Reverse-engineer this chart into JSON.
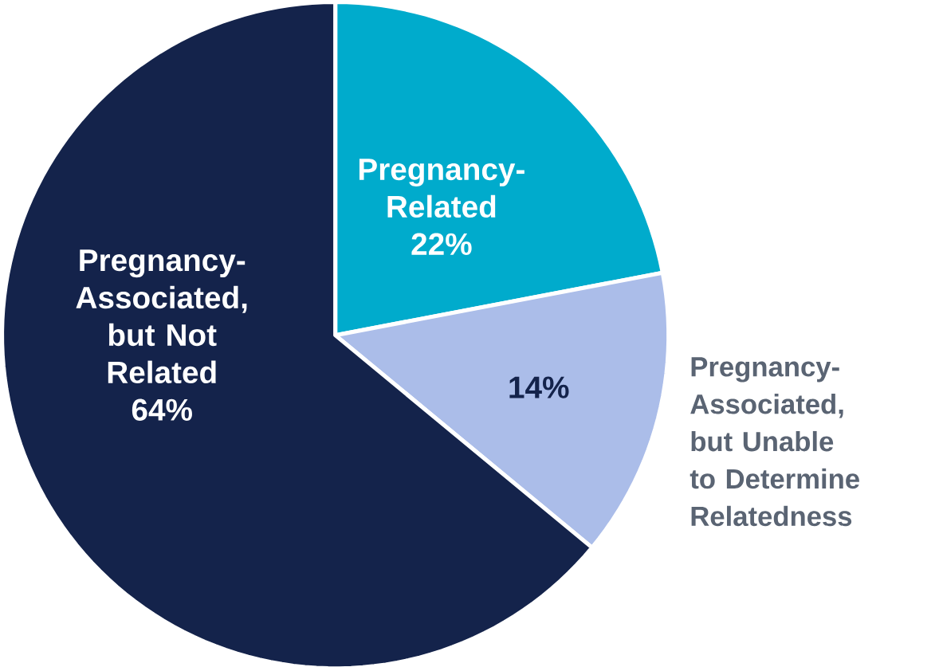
{
  "chart_data": {
    "type": "pie",
    "categories": [
      "Pregnancy-Related",
      "Pregnancy-Associated, but Unable to Determine Relatedness",
      "Pregnancy-Associated, but Not Related"
    ],
    "values": [
      22,
      14,
      64
    ],
    "value_labels": [
      "22%",
      "14%",
      "64%"
    ],
    "colors": [
      "#00abcc",
      "#abbde9",
      "#14234b"
    ]
  }
}
